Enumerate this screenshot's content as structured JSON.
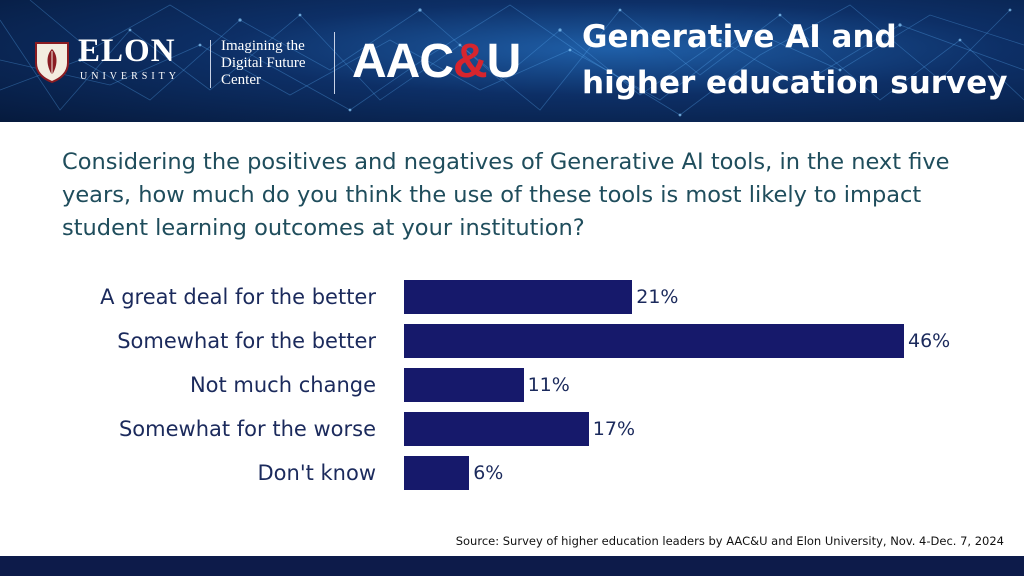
{
  "header": {
    "university_name": "ELON",
    "university_sub": "UNIVERSITY",
    "center_lines": [
      "Imagining the",
      "Digital Future",
      "Center"
    ],
    "partner_left": "AAC",
    "partner_amp": "&",
    "partner_right": "U",
    "title_lines": [
      "Generative AI and",
      "higher education survey"
    ]
  },
  "question": "Considering the positives and negatives of Generative AI tools, in the next five years, how much do you think the use of these tools is most likely to impact student learning outcomes at your institution?",
  "source": "Source: Survey of higher education leaders by AAC&U and Elon University, Nov. 4-Dec. 7, 2024",
  "colors": {
    "bar": "#16196b",
    "question_text": "#1f4d5c",
    "label_text": "#1b2a5c",
    "aacu_amp": "#d6252e"
  },
  "chart_data": {
    "type": "bar",
    "orientation": "horizontal",
    "title": "",
    "xlabel": "",
    "ylabel": "",
    "categories": [
      "A great deal for the better",
      "Somewhat for the better",
      "Not much change",
      "Somewhat for the worse",
      "Don't know"
    ],
    "values": [
      21,
      46,
      11,
      17,
      6
    ],
    "value_labels": [
      "21%",
      "46%",
      "11%",
      "17%",
      "6%"
    ],
    "xlim": [
      0,
      46
    ],
    "grid": false,
    "legend": "none"
  }
}
